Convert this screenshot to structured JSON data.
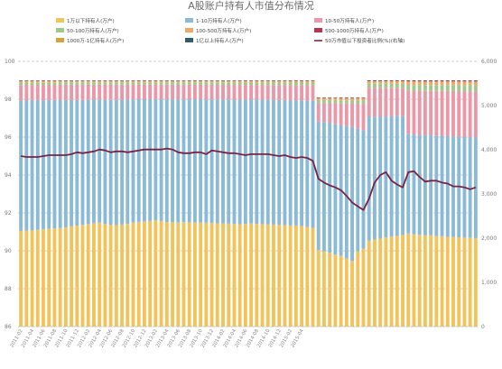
{
  "chart_data": {
    "type": "stacked-bar+line",
    "title": "A股账户持有人市值分布情况",
    "legend": [
      {
        "label": "1万以下持有人(万户)",
        "color": "#f2c35a"
      },
      {
        "label": "1-10万持有人(万户)",
        "color": "#8bbad6"
      },
      {
        "label": "10-50万持有人(万户)",
        "color": "#ea98a8"
      },
      {
        "label": "50-100万持有人(万户)",
        "color": "#9fc98b"
      },
      {
        "label": "100-500万持有人(万户)",
        "color": "#f0a868"
      },
      {
        "label": "500-1000万持有人(万户)",
        "color": "#b5354f"
      },
      {
        "label": "1000万-1亿持有人(万户)",
        "color": "#d8a23a"
      },
      {
        "label": "1亿以上持有人(万户)",
        "color": "#2f5e6a"
      },
      {
        "label": "50万市值以下投资者比例(%)(右轴)",
        "color": "#7a2440"
      }
    ],
    "y_left": {
      "ticks": [
        "100",
        "98",
        "96",
        "94",
        "92",
        "90",
        "88",
        "86"
      ],
      "range": [
        86,
        100
      ]
    },
    "y_right": {
      "ticks": [
        "6,000",
        "5,000",
        "4,000",
        "3,000",
        "2,000",
        "1,000",
        "0"
      ],
      "range": [
        0,
        6000
      ]
    },
    "x_ticks": [
      "2011-02",
      "2011-04",
      "2011-06",
      "2011-08",
      "2011-10",
      "2011-12",
      "2012-02",
      "2012-04",
      "2012-06",
      "2012-08",
      "2012-10",
      "2012-12",
      "2013-02",
      "2013-04",
      "2013-06",
      "2013-08",
      "2013-10",
      "2013-12",
      "2014-02",
      "2014-04",
      "2014-06",
      "2014-08",
      "2014-10",
      "2014-12",
      "2015-02",
      "2015-04"
    ],
    "categories_count": 82,
    "series": [
      {
        "name": "1万以下持有人(万户)",
        "values": [
          1940,
          1960,
          1970,
          2000,
          2020,
          2050,
          2060,
          2080,
          2100,
          2150,
          2180,
          2200,
          2230,
          2260,
          2300,
          2240,
          2200,
          2180,
          2200,
          2220,
          2260,
          2290,
          2300,
          2310,
          2330,
          2300,
          2260,
          2240,
          2230,
          2240,
          2230,
          2210,
          2200,
          2190,
          2180,
          2160,
          2150,
          2140,
          2120,
          2100,
          2110,
          2120,
          2100,
          2090,
          2070,
          2060,
          2050,
          2030,
          2010,
          2000,
          1980,
          1950,
          1930,
          1000,
          990,
          980,
          970,
          980,
          960,
          950,
          1200,
          1300,
          1380,
          1430,
          1460,
          1490,
          1510,
          1530,
          1550,
          1640,
          1600,
          1580,
          1560,
          1560,
          1540,
          1530,
          1510,
          1500,
          1490,
          1480,
          1470,
          1460
        ]
      },
      {
        "name": "1-10万持有人(万户)",
        "values": [
          2650,
          2660,
          2670,
          2680,
          2680,
          2690,
          2690,
          2700,
          2700,
          2710,
          2710,
          2700,
          2700,
          2700,
          2710,
          2710,
          2700,
          2690,
          2690,
          2690,
          2680,
          2680,
          2670,
          2660,
          2660,
          2650,
          2650,
          2640,
          2640,
          2630,
          2630,
          2620,
          2610,
          2600,
          2600,
          2590,
          2580,
          2580,
          2570,
          2560,
          2560,
          2550,
          2550,
          2540,
          2530,
          2520,
          2510,
          2500,
          2490,
          2480,
          2470,
          2480,
          2490,
          1680,
          1700,
          1720,
          1760,
          1800,
          1860,
          1940,
          1960,
          1980,
          2000,
          2010,
          2020,
          2020,
          2020,
          2020,
          2010,
          1750,
          1730,
          1720,
          1710,
          1700,
          1700,
          1700,
          1690,
          1690,
          1680,
          1680,
          1670,
          1670
        ]
      },
      {
        "name": "10-50万持有人(万户)",
        "values": [
          310,
          310,
          310,
          315,
          320,
          320,
          320,
          325,
          325,
          325,
          330,
          330,
          330,
          330,
          330,
          330,
          330,
          325,
          325,
          325,
          320,
          320,
          320,
          320,
          320,
          320,
          320,
          315,
          315,
          315,
          315,
          310,
          310,
          310,
          310,
          305,
          305,
          305,
          305,
          300,
          300,
          300,
          300,
          300,
          300,
          300,
          300,
          300,
          300,
          300,
          300,
          300,
          300,
          240,
          250,
          260,
          280,
          300,
          320,
          340,
          400,
          440,
          460,
          480,
          480,
          480,
          480,
          480,
          480,
          760,
          760,
          760,
          760,
          760,
          760,
          760,
          760,
          760,
          760,
          760,
          760,
          760
        ]
      },
      {
        "name": "50-100万持有人(万户)",
        "values": [
          50,
          50,
          50,
          50,
          50,
          50,
          50,
          50,
          50,
          50,
          50,
          50,
          50,
          50,
          50,
          50,
          50,
          50,
          50,
          50,
          50,
          50,
          50,
          50,
          50,
          50,
          50,
          50,
          50,
          50,
          50,
          50,
          50,
          50,
          50,
          50,
          50,
          50,
          50,
          50,
          50,
          50,
          50,
          50,
          50,
          50,
          50,
          50,
          50,
          50,
          50,
          50,
          50,
          40,
          40,
          40,
          40,
          45,
          45,
          45,
          55,
          60,
          65,
          70,
          70,
          70,
          70,
          70,
          70,
          100,
          100,
          100,
          100,
          100,
          100,
          100,
          100,
          100,
          100,
          100,
          100,
          100
        ]
      },
      {
        "name": "100-500万持有人(万户)",
        "values": [
          30,
          30,
          30,
          30,
          30,
          30,
          30,
          30,
          30,
          30,
          30,
          30,
          30,
          30,
          30,
          30,
          30,
          30,
          30,
          30,
          30,
          30,
          30,
          30,
          30,
          30,
          30,
          30,
          30,
          30,
          30,
          30,
          30,
          30,
          30,
          30,
          30,
          30,
          30,
          30,
          30,
          30,
          30,
          30,
          30,
          30,
          30,
          30,
          30,
          30,
          30,
          30,
          30,
          25,
          25,
          25,
          25,
          30,
          30,
          30,
          35,
          35,
          40,
          40,
          40,
          40,
          40,
          40,
          40,
          60,
          60,
          60,
          60,
          60,
          60,
          60,
          60,
          60,
          60,
          60,
          60,
          60
        ]
      },
      {
        "name": "500-1000万持有人(万户)",
        "values": [
          8,
          8,
          8,
          8,
          8,
          8,
          8,
          8,
          8,
          8,
          8,
          8,
          8,
          8,
          8,
          8,
          8,
          8,
          8,
          8,
          8,
          8,
          8,
          8,
          8,
          8,
          8,
          8,
          8,
          8,
          8,
          8,
          8,
          8,
          8,
          8,
          8,
          8,
          8,
          8,
          8,
          8,
          8,
          8,
          8,
          8,
          8,
          8,
          8,
          8,
          8,
          8,
          8,
          6,
          6,
          6,
          6,
          7,
          7,
          7,
          8,
          8,
          9,
          9,
          9,
          9,
          9,
          9,
          9,
          12,
          12,
          12,
          12,
          12,
          12,
          12,
          12,
          12,
          12,
          12,
          12,
          12
        ]
      },
      {
        "name": "1000万-1亿持有人(万户)",
        "values": [
          5,
          5,
          5,
          5,
          5,
          5,
          5,
          5,
          5,
          5,
          5,
          5,
          5,
          5,
          5,
          5,
          5,
          5,
          5,
          5,
          5,
          5,
          5,
          5,
          5,
          5,
          5,
          5,
          5,
          5,
          5,
          5,
          5,
          5,
          5,
          5,
          5,
          5,
          5,
          5,
          5,
          5,
          5,
          5,
          5,
          5,
          5,
          5,
          5,
          5,
          5,
          5,
          5,
          4,
          4,
          4,
          4,
          4,
          4,
          4,
          5,
          5,
          5,
          5,
          5,
          5,
          5,
          5,
          5,
          7,
          7,
          7,
          7,
          7,
          7,
          7,
          7,
          7,
          7,
          7,
          7,
          7
        ]
      },
      {
        "name": "1亿以上持有人(万户)",
        "values": [
          1,
          1,
          1,
          1,
          1,
          1,
          1,
          1,
          1,
          1,
          1,
          1,
          1,
          1,
          1,
          1,
          1,
          1,
          1,
          1,
          1,
          1,
          1,
          1,
          1,
          1,
          1,
          1,
          1,
          1,
          1,
          1,
          1,
          1,
          1,
          1,
          1,
          1,
          1,
          1,
          1,
          1,
          1,
          1,
          1,
          1,
          1,
          1,
          1,
          1,
          1,
          1,
          1,
          1,
          1,
          1,
          1,
          1,
          1,
          1,
          1,
          1,
          1,
          1,
          1,
          1,
          1,
          1,
          1,
          1,
          1,
          1,
          1,
          1,
          1,
          1,
          1,
          1,
          1,
          1,
          1,
          1
        ]
      }
    ],
    "line": {
      "name": "50万市值以下投资者比例(%)(右轴)",
      "values": [
        95.0,
        94.95,
        94.95,
        94.95,
        95.0,
        95.05,
        95.05,
        95.05,
        95.05,
        95.1,
        95.2,
        95.15,
        95.2,
        95.25,
        95.35,
        95.3,
        95.2,
        95.25,
        95.25,
        95.2,
        95.25,
        95.3,
        95.35,
        95.35,
        95.35,
        95.35,
        95.4,
        95.35,
        95.2,
        95.15,
        95.15,
        95.2,
        95.2,
        95.1,
        95.3,
        95.25,
        95.2,
        95.15,
        95.15,
        95.1,
        95.05,
        95.1,
        95.1,
        95.1,
        95.1,
        95.05,
        95.0,
        95.05,
        94.95,
        94.9,
        94.95,
        94.9,
        94.75,
        93.8,
        93.6,
        93.45,
        93.35,
        93.2,
        92.9,
        92.55,
        92.35,
        92.15,
        92.75,
        93.6,
        94.0,
        94.15,
        93.7,
        93.5,
        93.35,
        94.15,
        94.2,
        93.9,
        93.65,
        93.7,
        93.7,
        93.6,
        93.55,
        93.4,
        93.4,
        93.35,
        93.25,
        93.35
      ]
    }
  }
}
